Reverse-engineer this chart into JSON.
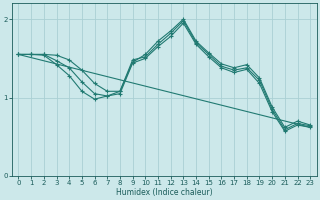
{
  "xlabel": "Humidex (Indice chaleur)",
  "xlim": [
    -0.5,
    23.5
  ],
  "ylim": [
    0,
    2.2
  ],
  "yticks": [
    0,
    1,
    2
  ],
  "xticks": [
    0,
    1,
    2,
    3,
    4,
    5,
    6,
    7,
    8,
    9,
    10,
    11,
    12,
    13,
    14,
    15,
    16,
    17,
    18,
    19,
    20,
    21,
    22,
    23
  ],
  "bg_color": "#cce8ea",
  "grid_color": "#aad0d4",
  "line_color": "#217a72",
  "font_color": "#1a5c5a",
  "line1_x": [
    0,
    1,
    2,
    3,
    4,
    5,
    6,
    7,
    8,
    9,
    10,
    11,
    12,
    13,
    14,
    15,
    16,
    17,
    18,
    19,
    20,
    21,
    22,
    23
  ],
  "line1_y": [
    1.55,
    1.55,
    1.55,
    1.54,
    1.48,
    1.35,
    1.18,
    1.08,
    1.08,
    1.45,
    1.55,
    1.72,
    1.85,
    2.0,
    1.72,
    1.57,
    1.43,
    1.38,
    1.42,
    1.25,
    0.88,
    0.62,
    0.7,
    0.65
  ],
  "line2_x": [
    0,
    1,
    2,
    3,
    4,
    5,
    6,
    7,
    8,
    9,
    10,
    11,
    12,
    13,
    14,
    15,
    16,
    17,
    18,
    19,
    20,
    21,
    22,
    23
  ],
  "line2_y": [
    1.55,
    1.55,
    1.55,
    1.47,
    1.38,
    1.2,
    1.05,
    1.02,
    1.05,
    1.44,
    1.5,
    1.65,
    1.78,
    1.95,
    1.68,
    1.52,
    1.38,
    1.32,
    1.36,
    1.18,
    0.82,
    0.57,
    0.65,
    0.62
  ],
  "line3_x": [
    0,
    1,
    2,
    3,
    4,
    5,
    6,
    7,
    8,
    9,
    10,
    11,
    12,
    13,
    14,
    15,
    16,
    17,
    18,
    19,
    20,
    21,
    22,
    23
  ],
  "line3_y": [
    1.55,
    1.55,
    1.54,
    1.42,
    1.28,
    1.08,
    0.98,
    1.02,
    1.08,
    1.48,
    1.52,
    1.68,
    1.82,
    1.98,
    1.7,
    1.55,
    1.4,
    1.35,
    1.38,
    1.22,
    0.85,
    0.59,
    0.67,
    0.64
  ],
  "line4_x": [
    0,
    23
  ],
  "line4_y": [
    1.55,
    0.62
  ]
}
